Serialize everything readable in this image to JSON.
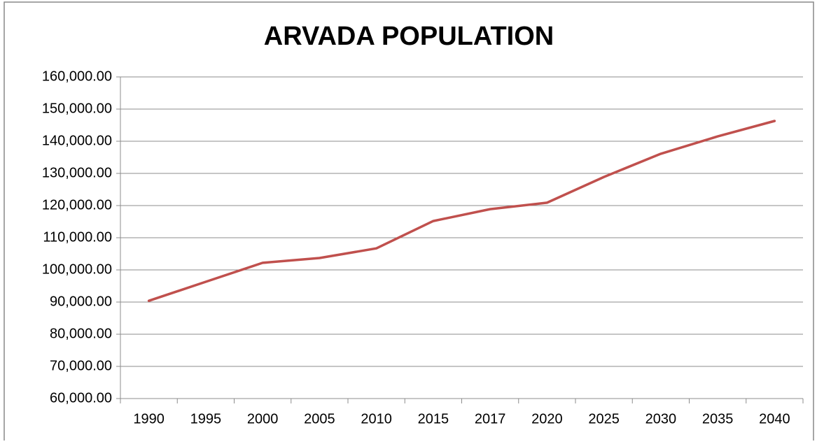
{
  "chart_data": {
    "type": "line",
    "title": "ARVADA POPULATION",
    "categories": [
      "1990",
      "1995",
      "2000",
      "2005",
      "2010",
      "2015",
      "2017",
      "2020",
      "2025",
      "2030",
      "2035",
      "2040"
    ],
    "values": [
      90400,
      96300,
      102200,
      103700,
      106700,
      115200,
      118900,
      120900,
      128900,
      136100,
      141500,
      146300
    ],
    "color": "#c0504d",
    "ylim": [
      60000,
      160000
    ],
    "yticks": [
      {
        "value": 60000,
        "label": "60,000.00"
      },
      {
        "value": 70000,
        "label": "70,000.00"
      },
      {
        "value": 80000,
        "label": "80,000.00"
      },
      {
        "value": 90000,
        "label": "90,000.00"
      },
      {
        "value": 100000,
        "label": "100,000.00"
      },
      {
        "value": 110000,
        "label": "110,000.00"
      },
      {
        "value": 120000,
        "label": "120,000.00"
      },
      {
        "value": 130000,
        "label": "130,000.00"
      },
      {
        "value": 140000,
        "label": "140,000.00"
      },
      {
        "value": 150000,
        "label": "150,000.00"
      },
      {
        "value": 160000,
        "label": "160,000.00"
      }
    ],
    "grid": true
  }
}
